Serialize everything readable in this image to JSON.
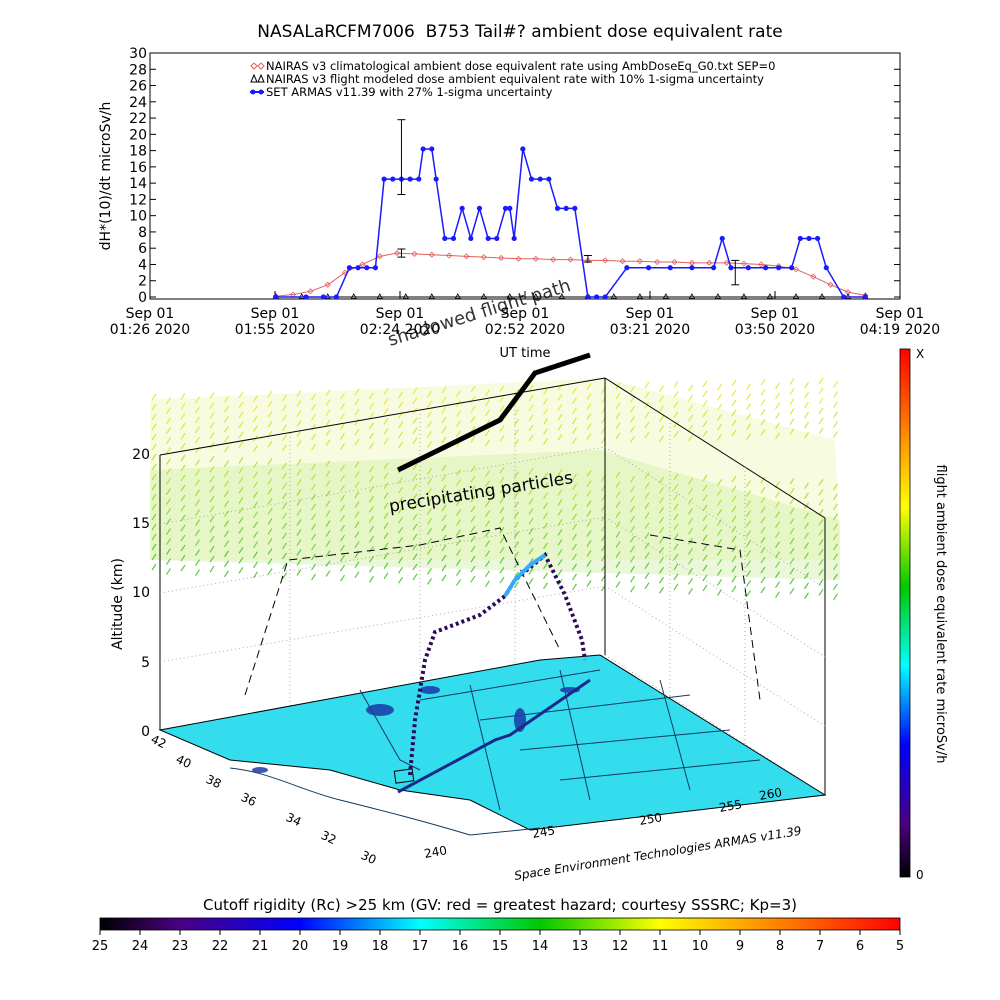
{
  "title": "NASALaRCFM7006  B753 Tail#? ambient dose equivalent rate",
  "chart_data": [
    {
      "type": "line",
      "ylabel": "dH*(10)/dt microSv/h",
      "xlabel": "UT time",
      "ylim": [
        0,
        30
      ],
      "yticks": [
        "0",
        "2",
        "4",
        "6",
        "8",
        "10",
        "12",
        "14",
        "16",
        "18",
        "20",
        "22",
        "24",
        "26",
        "28",
        "30"
      ],
      "xticks": [
        [
          "Sep 01",
          "01:26 2020"
        ],
        [
          "Sep 01",
          "01:55 2020"
        ],
        [
          "Sep 01",
          "02:24 2020"
        ],
        [
          "Sep 01",
          "02:52 2020"
        ],
        [
          "Sep 01",
          "03:21 2020"
        ],
        [
          "Sep 01",
          "03:50 2020"
        ],
        [
          "Sep 01",
          "04:19 2020"
        ]
      ],
      "xlim_minutes_from_0126": [
        0,
        173
      ],
      "legend": [
        "NAIRAS v3 climatological ambient dose equivalent rate using AmbDoseEq_G0.txt SEP=0",
        "NAIRAS v3 flight modeled dose ambient equivalent rate with 10% 1-sigma uncertainty",
        "SET ARMAS v11.39 with 27% 1-sigma uncertainty"
      ],
      "legend_position": "top-right",
      "series": [
        {
          "name": "NAIRAS v3 climatological ambient dose equivalent rate using AmbDoseEq_G0.txt SEP=0",
          "color": "#e06060",
          "marker": "diamond",
          "x": [
            29,
            33,
            37,
            41,
            45,
            49,
            53,
            57,
            61,
            65,
            69,
            73,
            77,
            81,
            85,
            89,
            93,
            97,
            101,
            105,
            109,
            113,
            117,
            121,
            125,
            129,
            133,
            137,
            141,
            145,
            149,
            153,
            157,
            161,
            165
          ],
          "values": [
            0.1,
            0.3,
            0.7,
            1.5,
            3,
            4,
            5,
            5.4,
            5.3,
            5.2,
            5.1,
            5,
            4.9,
            4.8,
            4.7,
            4.7,
            4.6,
            4.6,
            4.5,
            4.5,
            4.4,
            4.4,
            4.3,
            4.3,
            4.2,
            4.2,
            4.2,
            4.1,
            4,
            3.8,
            3.4,
            2.5,
            1.5,
            0.6,
            0.2
          ]
        },
        {
          "name": "NAIRAS v3 flight modeled dose ambient equivalent rate with 10% 1-sigma uncertainty",
          "color": "#000000",
          "marker": "triangle",
          "x": [
            29,
            35,
            41,
            47,
            53,
            59,
            65,
            71,
            77,
            83,
            89,
            95,
            101,
            107,
            113,
            119,
            125,
            131,
            137,
            143,
            149,
            155,
            161,
            165
          ],
          "values": [
            0,
            0,
            0,
            0,
            0,
            0,
            0,
            0,
            0,
            0,
            0,
            0,
            0,
            0,
            0,
            0,
            0,
            0,
            0,
            0,
            0,
            0,
            0,
            0
          ]
        },
        {
          "name": "SET ARMAS v11.39 with 27% 1-sigma uncertainty",
          "color": "#1a1aff",
          "marker": "filled-circle",
          "x": [
            29,
            36,
            40,
            43,
            46,
            48,
            50,
            52,
            54,
            56,
            58,
            60,
            62,
            63,
            65,
            66,
            68,
            70,
            72,
            74,
            76,
            78,
            80,
            82,
            83,
            84,
            86,
            88,
            90,
            92,
            94,
            96,
            98,
            101,
            103,
            105,
            110,
            115,
            120,
            125,
            130,
            132,
            134,
            138,
            142,
            145,
            148,
            150,
            152,
            154,
            156,
            160,
            165
          ],
          "values": [
            0,
            0,
            0,
            0,
            3.6,
            3.6,
            3.6,
            3.6,
            14.5,
            14.5,
            14.5,
            14.5,
            14.5,
            18.2,
            18.2,
            14.5,
            7.2,
            7.2,
            10.9,
            7.2,
            10.9,
            7.2,
            7.2,
            10.9,
            10.9,
            7.2,
            18.2,
            14.5,
            14.5,
            14.5,
            10.9,
            10.9,
            10.9,
            0,
            0,
            0,
            3.6,
            3.6,
            3.6,
            3.6,
            3.6,
            7.2,
            3.6,
            3.6,
            3.6,
            3.6,
            3.6,
            7.2,
            7.2,
            7.2,
            3.6,
            0,
            0
          ]
        }
      ],
      "error_bars": [
        {
          "x": 58,
          "y": 17.2,
          "low": 12.6,
          "high": 21.8,
          "series": "SET ARMAS v11.39 with 27% 1-sigma uncertainty"
        },
        {
          "x": 58,
          "y": 5.4,
          "low": 4.9,
          "high": 5.9,
          "series": "NAIRAS v3 climatological ambient dose equivalent rate using AmbDoseEq_G0.txt SEP=0"
        },
        {
          "x": 101,
          "y": 4.7,
          "low": 4.3,
          "high": 5.1,
          "series": "NAIRAS v3 climatological ambient dose equivalent rate using AmbDoseEq_G0.txt SEP=0"
        },
        {
          "x": 135,
          "y": 3.0,
          "low": 1.5,
          "high": 4.5,
          "series": "SET ARMAS v11.39 with 27% 1-sigma uncertainty"
        }
      ]
    },
    {
      "type": "scatter",
      "title": "",
      "zlabel": "Altitude (km)",
      "zticks": [
        "0",
        "5",
        "10",
        "15",
        "20"
      ],
      "lat_ticks": [
        "42",
        "40",
        "38",
        "36",
        "34",
        "32",
        "30"
      ],
      "lon_ticks": [
        "240",
        "245",
        "250",
        "255",
        "260"
      ],
      "annotations": [
        "shadowed flight path",
        "precipitating particles"
      ],
      "credit": "Space Environment Technologies ARMAS v11.39"
    }
  ],
  "side_colorbar": {
    "label": "flight ambient dose equivalent rate microSv/h",
    "max_label": "X",
    "min_label": "0"
  },
  "bottom_colorbar": {
    "title": "Cutoff rigidity (Rc) >25 km (GV: red = greatest hazard; courtesy SSSRC; Kp=3)",
    "ticks": [
      "25",
      "24",
      "23",
      "22",
      "21",
      "20",
      "19",
      "18",
      "17",
      "16",
      "15",
      "14",
      "13",
      "12",
      "11",
      "10",
      "9",
      "8",
      "7",
      "6",
      "5"
    ]
  }
}
